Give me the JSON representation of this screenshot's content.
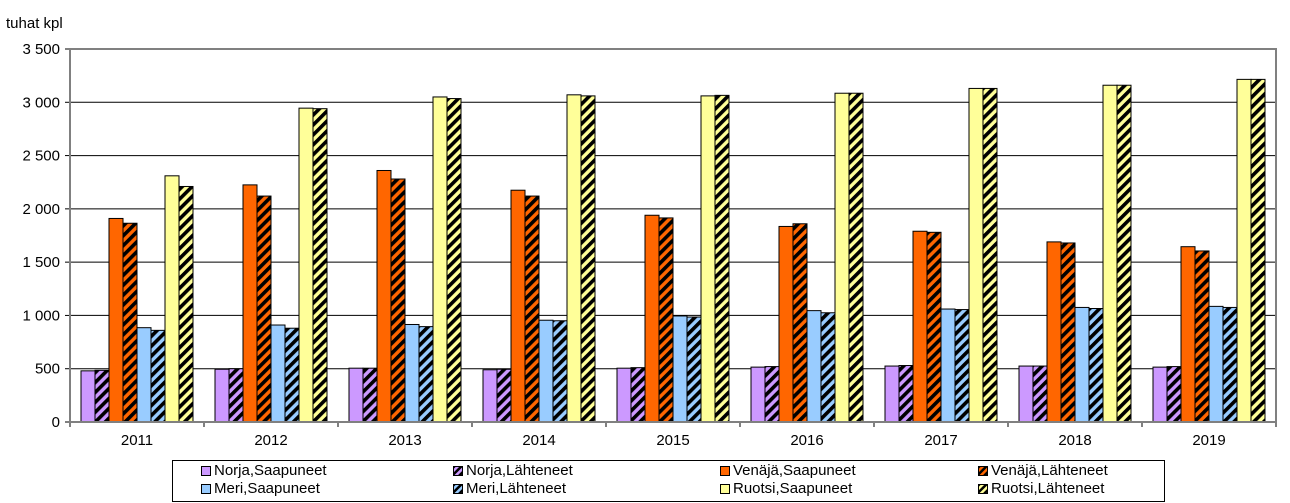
{
  "chart_data": {
    "type": "bar",
    "ylabel": "tuhat kpl",
    "ylim": [
      0,
      3500
    ],
    "yticks": [
      0,
      500,
      1000,
      1500,
      2000,
      2500,
      3000,
      3500
    ],
    "ytick_labels": [
      "0",
      "500",
      "1 000",
      "1 500",
      "2 000",
      "2 500",
      "3 000",
      "3 500"
    ],
    "categories": [
      "2011",
      "2012",
      "2013",
      "2014",
      "2015",
      "2016",
      "2017",
      "2018",
      "2019"
    ],
    "grid": true,
    "legend_position": "bottom",
    "series": [
      {
        "name": "Norja,Saapuneet",
        "color": "#cc99ff",
        "pattern": "solid",
        "values": [
          480,
          495,
          505,
          490,
          505,
          515,
          525,
          525,
          515
        ]
      },
      {
        "name": "Norja,Lähteneet",
        "color": "#cc99ff",
        "pattern": "striped",
        "values": [
          485,
          500,
          505,
          495,
          510,
          520,
          530,
          525,
          520
        ]
      },
      {
        "name": "Venäjä,Saapuneet",
        "color": "#ff6600",
        "pattern": "solid",
        "values": [
          1910,
          2225,
          2360,
          2175,
          1940,
          1835,
          1790,
          1690,
          1645
        ]
      },
      {
        "name": "Venäjä,Lähteneet",
        "color": "#ff6600",
        "pattern": "striped",
        "values": [
          1865,
          2120,
          2280,
          2120,
          1915,
          1860,
          1780,
          1680,
          1605
        ]
      },
      {
        "name": "Meri,Saapuneet",
        "color": "#99ccff",
        "pattern": "solid",
        "values": [
          885,
          910,
          915,
          955,
          995,
          1045,
          1060,
          1075,
          1085
        ]
      },
      {
        "name": "Meri,Lähteneet",
        "color": "#99ccff",
        "pattern": "striped",
        "values": [
          860,
          880,
          895,
          950,
          985,
          1025,
          1055,
          1065,
          1075
        ]
      },
      {
        "name": "Ruotsi,Saapuneet",
        "color": "#ffff99",
        "pattern": "solid",
        "values": [
          2310,
          2945,
          3050,
          3070,
          3060,
          3085,
          3130,
          3160,
          3215
        ]
      },
      {
        "name": "Ruotsi,Lähteneet",
        "color": "#ffff99",
        "pattern": "striped",
        "values": [
          2210,
          2940,
          3035,
          3060,
          3065,
          3085,
          3130,
          3160,
          3215
        ]
      }
    ]
  }
}
